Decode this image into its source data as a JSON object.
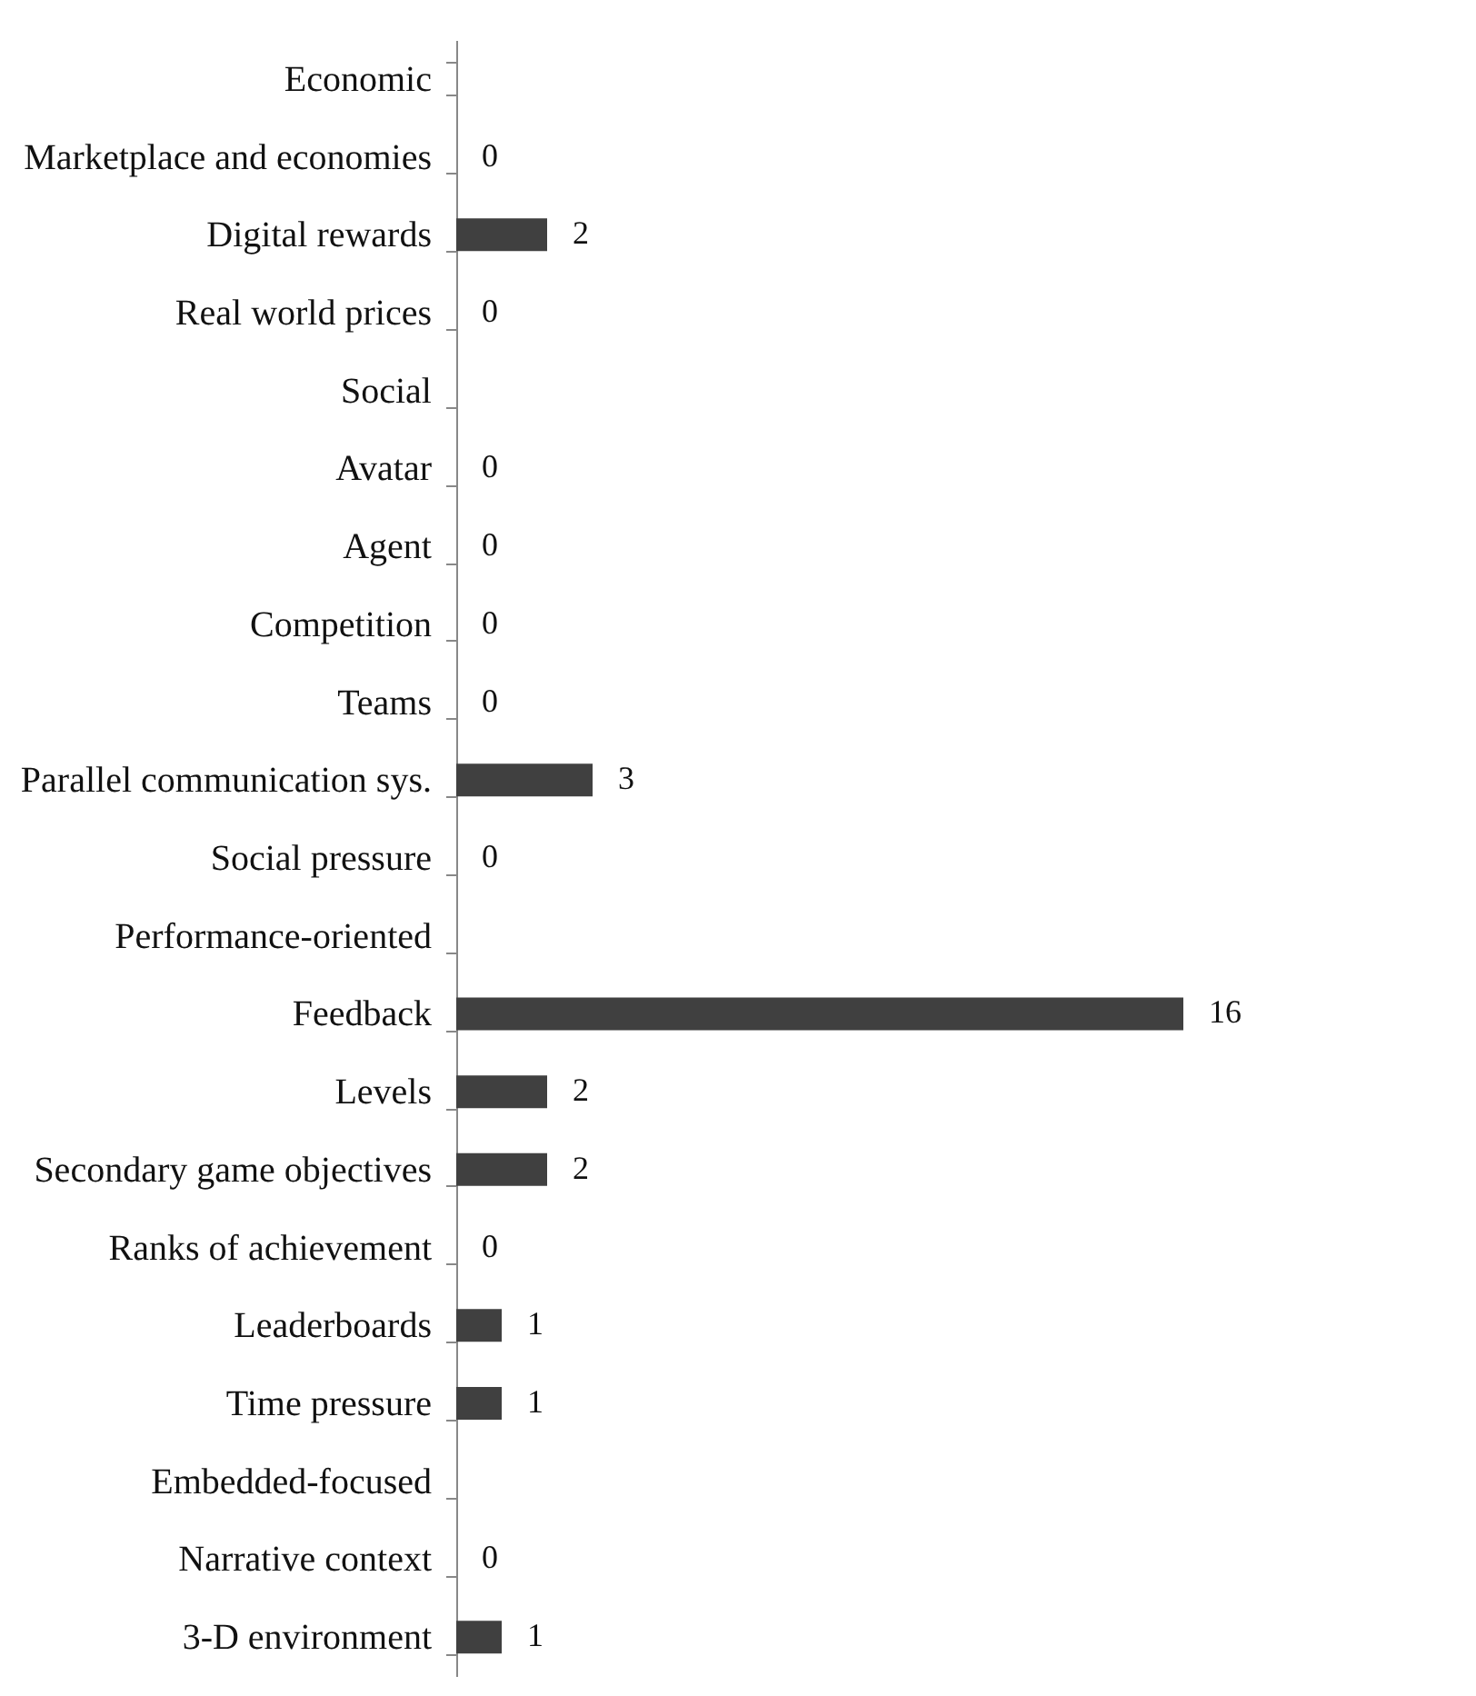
{
  "chart_data": {
    "type": "bar",
    "orientation": "horizontal",
    "data_labels": true,
    "color": "#404040",
    "categories": [
      "Economic",
      "Marketplace and economies",
      "Digital rewards",
      "Real world prices",
      "Social",
      "Avatar",
      "Agent",
      "Competition",
      "Teams",
      "Parallel communication sys.",
      "Social pressure",
      "Performance-oriented",
      "Feedback",
      "Levels",
      "Secondary game objectives",
      "Ranks of achievement",
      "Leaderboards",
      "Time pressure",
      "Embedded-focused",
      "Narrative context",
      "3-D environment"
    ],
    "values": [
      null,
      0,
      2,
      0,
      null,
      0,
      0,
      0,
      0,
      3,
      0,
      null,
      16,
      2,
      2,
      0,
      1,
      1,
      null,
      0,
      1
    ]
  }
}
